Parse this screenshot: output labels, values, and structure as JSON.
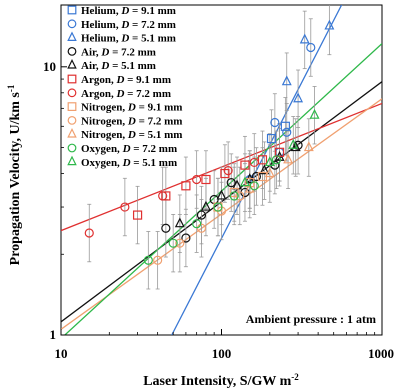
{
  "chart_data": {
    "type": "scatter",
    "xlabel": "Laser Intensity, S/GW m",
    "xlabel_sup": "-2",
    "ylabel": "Propagation Velocity, U/km s",
    "ylabel_sup": "-1",
    "xscale": "log",
    "yscale": "log",
    "xlim": [
      10,
      1000
    ],
    "ylim": [
      1,
      17
    ],
    "x_ticks": [
      {
        "value": 10,
        "label": "10"
      },
      {
        "value": 100,
        "label": "100"
      },
      {
        "value": 1000,
        "label": "1000"
      }
    ],
    "y_ticks": [
      {
        "value": 1,
        "label": "1"
      },
      {
        "value": 10,
        "label": "10"
      }
    ],
    "grid": false,
    "legend_position": "top-left",
    "annotation": "Ambient pressure : 1 atm",
    "series": [
      {
        "name": "Helium, D = 9.1 mm",
        "color": "#3a78d4",
        "marker": "square",
        "points": [
          [
            205,
            5.4
          ],
          [
            250,
            6.0
          ]
        ]
      },
      {
        "name": "Helium, D = 7.2 mm",
        "color": "#3a78d4",
        "marker": "circle",
        "points": [
          [
            215,
            6.2
          ],
          [
            255,
            5.7
          ],
          [
            360,
            11.8
          ],
          [
            150,
            3.8
          ],
          [
            230,
            4.8
          ]
        ]
      },
      {
        "name": "Helium, D = 5.1 mm",
        "color": "#3a78d4",
        "marker": "triangle",
        "points": [
          [
            255,
            8.8
          ],
          [
            330,
            12.6
          ],
          [
            470,
            14.2
          ],
          [
            300,
            7.6
          ]
        ]
      },
      {
        "name": "Air, D = 7.2 mm",
        "color": "#111111",
        "marker": "circle",
        "points": [
          [
            45,
            2.5
          ],
          [
            60,
            2.3
          ],
          [
            75,
            2.8
          ],
          [
            90,
            3.2
          ],
          [
            115,
            3.7
          ],
          [
            140,
            3.4
          ],
          [
            165,
            3.9
          ],
          [
            215,
            4.3
          ],
          [
            300,
            5.1
          ]
        ]
      },
      {
        "name": "Air, D = 5.1 mm",
        "color": "#111111",
        "marker": "triangle",
        "points": [
          [
            55,
            2.6
          ],
          [
            80,
            3.0
          ],
          [
            100,
            3.3
          ],
          [
            125,
            3.6
          ],
          [
            150,
            3.8
          ],
          [
            185,
            4.1
          ],
          [
            230,
            4.6
          ],
          [
            290,
            5.0
          ]
        ]
      },
      {
        "name": "Argon, D = 9.1 mm",
        "color": "#e03030",
        "marker": "square",
        "points": [
          [
            30,
            2.8
          ],
          [
            45,
            3.3
          ],
          [
            60,
            3.6
          ],
          [
            80,
            3.8
          ],
          [
            105,
            4.0
          ],
          [
            140,
            4.3
          ],
          [
            180,
            4.5
          ],
          [
            230,
            4.8
          ]
        ]
      },
      {
        "name": "Argon, D = 7.2 mm",
        "color": "#e03030",
        "marker": "circle",
        "points": [
          [
            15,
            2.4
          ],
          [
            25,
            3.0
          ],
          [
            43,
            3.3
          ],
          [
            70,
            3.8
          ],
          [
            110,
            4.1
          ],
          [
            160,
            4.4
          ]
        ]
      },
      {
        "name": "Nitrogen, D = 9.1 mm",
        "color": "#f0a070",
        "marker": "square",
        "points": [
          [
            95,
            3.0
          ],
          [
            120,
            3.4
          ],
          [
            150,
            3.7
          ],
          [
            180,
            3.9
          ]
        ]
      },
      {
        "name": "Nitrogen, D = 7.2 mm",
        "color": "#f0a070",
        "marker": "circle",
        "points": [
          [
            40,
            1.9
          ],
          [
            55,
            2.2
          ],
          [
            75,
            2.5
          ],
          [
            100,
            2.9
          ],
          [
            130,
            3.3
          ]
        ]
      },
      {
        "name": "Nitrogen, D = 5.1 mm",
        "color": "#f0a070",
        "marker": "triangle",
        "points": [
          [
            150,
            3.5
          ],
          [
            200,
            4.0
          ],
          [
            260,
            4.5
          ],
          [
            350,
            5.0
          ]
        ]
      },
      {
        "name": "Oxygen, D = 7.2 mm",
        "color": "#2eb84a",
        "marker": "circle",
        "points": [
          [
            35,
            1.9
          ],
          [
            50,
            2.2
          ],
          [
            70,
            2.6
          ],
          [
            95,
            3.0
          ],
          [
            120,
            3.3
          ],
          [
            160,
            3.6
          ],
          [
            220,
            4.5
          ]
        ]
      },
      {
        "name": "Oxygen, D = 5.1 mm",
        "color": "#2eb84a",
        "marker": "triangle",
        "points": [
          [
            140,
            3.7
          ],
          [
            200,
            4.4
          ],
          [
            280,
            5.1
          ],
          [
            380,
            6.6
          ]
        ]
      }
    ],
    "fit_lines": [
      {
        "color": "#3a78d4",
        "from": [
          49,
          1.0
        ],
        "to": [
          560,
          17.0
        ]
      },
      {
        "color": "#111111",
        "from": [
          10,
          1.12
        ],
        "to": [
          1000,
          8.8
        ]
      },
      {
        "color": "#e03030",
        "from": [
          10,
          2.45
        ],
        "to": [
          1000,
          7.3
        ]
      },
      {
        "color": "#f0a070",
        "from": [
          10,
          1.05
        ],
        "to": [
          1000,
          7.6
        ]
      },
      {
        "color": "#2eb84a",
        "from": [
          10,
          0.97
        ],
        "to": [
          1000,
          12.2
        ]
      }
    ]
  }
}
